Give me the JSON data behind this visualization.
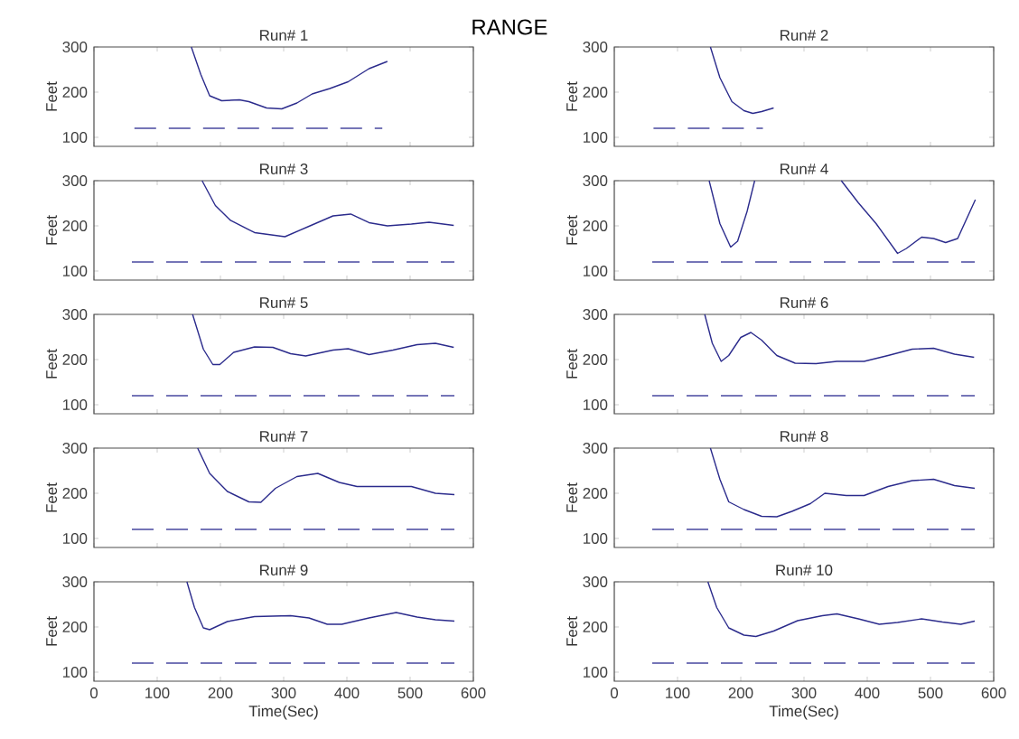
{
  "chart_data": [
    {
      "type": "line",
      "title": "Run# 1",
      "ylabel": "Feet",
      "annotations": [
        "RANGE"
      ],
      "xlim": [
        0,
        600
      ],
      "ylim": [
        80,
        300
      ],
      "xticks": [
        0,
        100,
        200,
        300,
        400,
        500,
        600
      ],
      "yticks": [
        100,
        200,
        300
      ],
      "tick_labels": "y",
      "series": [
        {
          "color": "#2b2b8c",
          "x": [
            154,
            169,
            183,
            202,
            230,
            245,
            273,
            297,
            321,
            345,
            373,
            402,
            435,
            464
          ],
          "values": [
            300,
            239,
            192,
            181,
            183,
            179,
            165,
            163,
            176,
            196,
            208,
            223,
            252,
            268
          ]
        },
        {
          "color": "#4848a0",
          "line_style": "dashed",
          "x": [
            64,
            456
          ],
          "values": [
            120,
            120
          ]
        }
      ]
    },
    {
      "type": "line",
      "title": "Run# 2",
      "ylabel": "Feet",
      "xlim": [
        0,
        600
      ],
      "ylim": [
        80,
        300
      ],
      "xticks": [
        0,
        100,
        200,
        300,
        400,
        500,
        600
      ],
      "yticks": [
        100,
        200,
        300
      ],
      "tick_labels": "y",
      "series": [
        {
          "color": "#2b2b8c",
          "x": [
            152,
            167,
            186,
            205,
            219,
            233,
            252
          ],
          "values": [
            300,
            232,
            179,
            159,
            153,
            157,
            165
          ]
        },
        {
          "color": "#4848a0",
          "line_style": "dashed",
          "x": [
            62,
            235
          ],
          "values": [
            120,
            120
          ]
        }
      ]
    },
    {
      "type": "line",
      "title": "Run# 3",
      "ylabel": "Feet",
      "xlim": [
        0,
        600
      ],
      "ylim": [
        80,
        300
      ],
      "xticks": [
        0,
        100,
        200,
        300,
        400,
        500,
        600
      ],
      "yticks": [
        100,
        200,
        300
      ],
      "tick_labels": "y",
      "series": [
        {
          "color": "#2b2b8c",
          "x": [
            171,
            192,
            216,
            254,
            302,
            340,
            378,
            406,
            435,
            464,
            502,
            530,
            569
          ],
          "values": [
            300,
            245,
            212,
            185,
            176,
            199,
            222,
            226,
            207,
            200,
            204,
            208,
            201
          ]
        },
        {
          "color": "#4848a0",
          "line_style": "dashed",
          "x": [
            60,
            570
          ],
          "values": [
            120,
            120
          ]
        }
      ]
    },
    {
      "type": "line",
      "title": "Run# 4",
      "ylabel": "Feet",
      "xlim": [
        0,
        600
      ],
      "ylim": [
        80,
        300
      ],
      "xticks": [
        0,
        100,
        200,
        300,
        400,
        500,
        600
      ],
      "yticks": [
        100,
        200,
        300
      ],
      "tick_labels": "y",
      "series": [
        {
          "color": "#2b2b8c",
          "x": [
            150,
            167,
            184,
            195,
            210,
            222,
            300,
            359,
            386,
            414,
            448,
            462,
            486,
            505,
            524,
            543,
            571
          ],
          "values": [
            300,
            205,
            153,
            166,
            232,
            300,
            null,
            300,
            251,
            205,
            139,
            150,
            175,
            172,
            163,
            172,
            258
          ]
        },
        {
          "color": "#4848a0",
          "line_style": "dashed",
          "x": [
            60,
            570
          ],
          "values": [
            120,
            120
          ]
        }
      ]
    },
    {
      "type": "line",
      "title": "Run# 5",
      "ylabel": "Feet",
      "xlim": [
        0,
        600
      ],
      "ylim": [
        80,
        300
      ],
      "xticks": [
        0,
        100,
        200,
        300,
        400,
        500,
        600
      ],
      "yticks": [
        100,
        200,
        300
      ],
      "tick_labels": "y",
      "series": [
        {
          "color": "#2b2b8c",
          "x": [
            156,
            173,
            188,
            199,
            221,
            254,
            283,
            311,
            335,
            378,
            402,
            435,
            473,
            511,
            540,
            569
          ],
          "values": [
            300,
            223,
            189,
            189,
            216,
            228,
            227,
            213,
            208,
            221,
            224,
            211,
            221,
            233,
            236,
            227
          ]
        },
        {
          "color": "#4848a0",
          "line_style": "dashed",
          "x": [
            60,
            570
          ],
          "values": [
            120,
            120
          ]
        }
      ]
    },
    {
      "type": "line",
      "title": "Run# 6",
      "ylabel": "Feet",
      "xlim": [
        0,
        600
      ],
      "ylim": [
        80,
        300
      ],
      "xticks": [
        0,
        100,
        200,
        300,
        400,
        500,
        600
      ],
      "yticks": [
        100,
        200,
        300
      ],
      "tick_labels": "y",
      "series": [
        {
          "color": "#2b2b8c",
          "x": [
            143,
            155,
            169,
            181,
            200,
            216,
            233,
            257,
            286,
            319,
            352,
            395,
            433,
            471,
            505,
            538,
            569
          ],
          "values": [
            300,
            236,
            196,
            209,
            249,
            260,
            243,
            209,
            192,
            191,
            196,
            196,
            209,
            223,
            225,
            212,
            205
          ]
        },
        {
          "color": "#4848a0",
          "line_style": "dashed",
          "x": [
            60,
            570
          ],
          "values": [
            120,
            120
          ]
        }
      ]
    },
    {
      "type": "line",
      "title": "Run# 7",
      "ylabel": "Feet",
      "xlim": [
        0,
        600
      ],
      "ylim": [
        80,
        300
      ],
      "xticks": [
        0,
        100,
        200,
        300,
        400,
        500,
        600
      ],
      "yticks": [
        100,
        200,
        300
      ],
      "tick_labels": "y",
      "series": [
        {
          "color": "#2b2b8c",
          "x": [
            164,
            183,
            211,
            245,
            264,
            287,
            321,
            354,
            388,
            416,
            464,
            502,
            540,
            570
          ],
          "values": [
            300,
            244,
            204,
            181,
            180,
            211,
            237,
            244,
            224,
            215,
            215,
            215,
            200,
            197
          ]
        },
        {
          "color": "#4848a0",
          "line_style": "dashed",
          "x": [
            60,
            570
          ],
          "values": [
            120,
            120
          ]
        }
      ]
    },
    {
      "type": "line",
      "title": "Run# 8",
      "ylabel": "Feet",
      "xlim": [
        0,
        600
      ],
      "ylim": [
        80,
        300
      ],
      "xticks": [
        0,
        100,
        200,
        300,
        400,
        500,
        600
      ],
      "yticks": [
        100,
        200,
        300
      ],
      "tick_labels": "y",
      "series": [
        {
          "color": "#2b2b8c",
          "x": [
            152,
            167,
            181,
            205,
            233,
            257,
            281,
            310,
            333,
            367,
            395,
            433,
            471,
            505,
            538,
            570
          ],
          "values": [
            300,
            231,
            181,
            164,
            149,
            148,
            160,
            177,
            200,
            195,
            195,
            215,
            228,
            231,
            217,
            211
          ]
        },
        {
          "color": "#4848a0",
          "line_style": "dashed",
          "x": [
            60,
            570
          ],
          "values": [
            120,
            120
          ]
        }
      ]
    },
    {
      "type": "line",
      "title": "Run# 9",
      "xlabel": "Time(Sec)",
      "ylabel": "Feet",
      "xlim": [
        0,
        600
      ],
      "ylim": [
        80,
        300
      ],
      "xticks": [
        0,
        100,
        200,
        300,
        400,
        500,
        600
      ],
      "yticks": [
        100,
        200,
        300
      ],
      "series": [
        {
          "color": "#2b2b8c",
          "x": [
            147,
            159,
            173,
            183,
            211,
            254,
            311,
            340,
            369,
            392,
            435,
            478,
            511,
            540,
            570
          ],
          "values": [
            300,
            243,
            198,
            194,
            212,
            223,
            225,
            220,
            206,
            206,
            220,
            232,
            222,
            216,
            213
          ]
        },
        {
          "color": "#4848a0",
          "line_style": "dashed",
          "x": [
            60,
            570
          ],
          "values": [
            120,
            120
          ]
        }
      ]
    },
    {
      "type": "line",
      "title": "Run# 10",
      "xlabel": "Time(Sec)",
      "ylabel": "Feet",
      "xlim": [
        0,
        600
      ],
      "ylim": [
        80,
        300
      ],
      "xticks": [
        0,
        100,
        200,
        300,
        400,
        500,
        600
      ],
      "yticks": [
        100,
        200,
        300
      ],
      "series": [
        {
          "color": "#2b2b8c",
          "x": [
            148,
            162,
            181,
            205,
            224,
            252,
            290,
            329,
            352,
            386,
            419,
            448,
            486,
            519,
            548,
            570
          ],
          "values": [
            300,
            243,
            198,
            182,
            179,
            191,
            214,
            225,
            229,
            218,
            206,
            210,
            218,
            211,
            206,
            213
          ]
        },
        {
          "color": "#4848a0",
          "line_style": "dashed",
          "x": [
            60,
            570
          ],
          "values": [
            120,
            120
          ]
        }
      ]
    }
  ]
}
